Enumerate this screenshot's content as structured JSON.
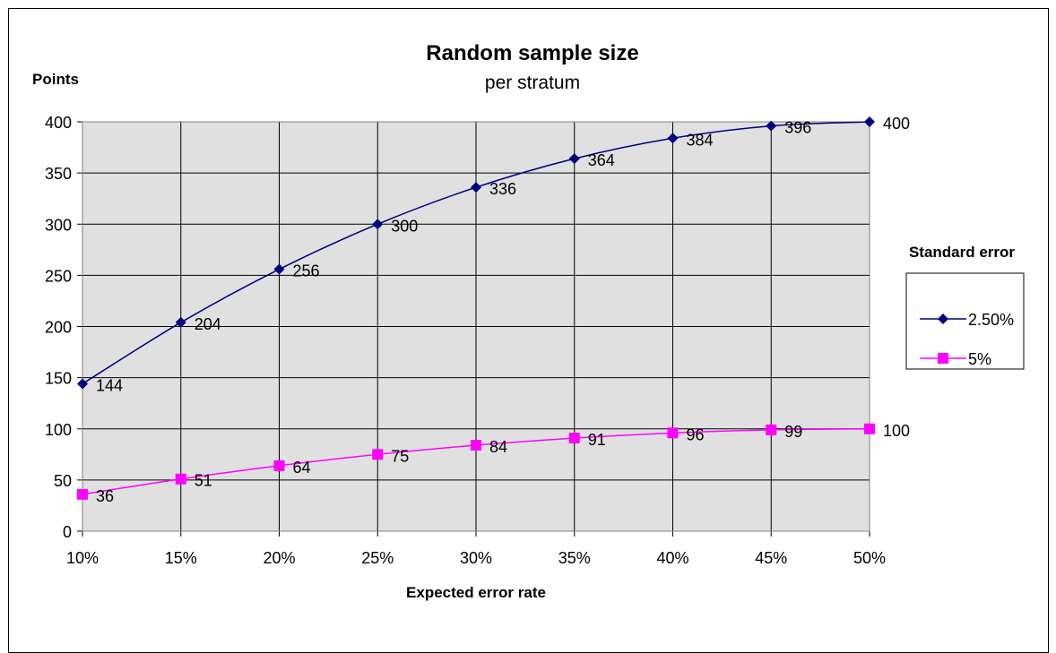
{
  "chart_data": {
    "type": "line",
    "title": "Random sample size",
    "subtitle": "per stratum",
    "xlabel": "Expected error rate",
    "ylabel": "Points",
    "categories": [
      "10%",
      "15%",
      "20%",
      "25%",
      "30%",
      "35%",
      "40%",
      "45%",
      "50%"
    ],
    "ylim": [
      0,
      400
    ],
    "yticks": [
      "0",
      "50",
      "100",
      "150",
      "200",
      "250",
      "300",
      "350",
      "400"
    ],
    "grid": true,
    "legend": {
      "title": "Standard error",
      "position": "right"
    },
    "series": [
      {
        "name": "2.50%",
        "color": "#000080",
        "marker": "diamond",
        "values": [
          144,
          204,
          256,
          300,
          336,
          364,
          384,
          396,
          400
        ]
      },
      {
        "name": "5%",
        "color": "#ff00ff",
        "marker": "square",
        "values": [
          36,
          51,
          64,
          75,
          84,
          91,
          96,
          99,
          100
        ]
      }
    ]
  }
}
